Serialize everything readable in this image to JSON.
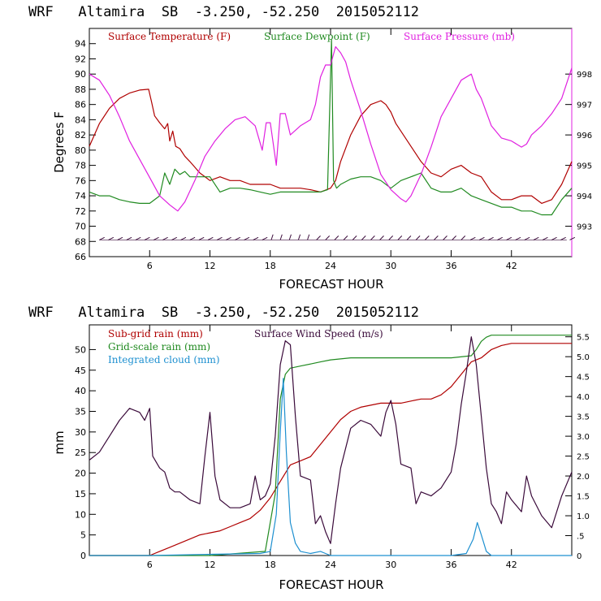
{
  "chart_data": [
    {
      "type": "line",
      "title": "WRF   Altamira  SB  -3.250, -52.250  2015052112",
      "xlabel": "FORECAST HOUR",
      "ylabel": "Degrees F",
      "xlim": [
        0,
        48
      ],
      "ylim": [
        66,
        96
      ],
      "y2lim": [
        992,
        999.5
      ],
      "x_ticks": [
        6,
        12,
        18,
        24,
        30,
        36,
        42
      ],
      "y_ticks": [
        66,
        68,
        70,
        72,
        74,
        76,
        78,
        80,
        82,
        84,
        86,
        88,
        90,
        92,
        94
      ],
      "y2_ticks": [
        993,
        994,
        995,
        996,
        997,
        998
      ],
      "legend_placement": "top",
      "series": [
        {
          "name": "Surface Temperature (F)",
          "color": "#b00000",
          "axis": "left",
          "x": [
            0,
            1,
            2,
            3,
            4,
            5,
            5.9,
            6.2,
            6.5,
            7,
            7.5,
            7.8,
            8,
            8.3,
            8.6,
            9,
            9.5,
            10,
            11,
            12,
            13,
            14,
            15,
            16,
            17,
            18,
            19,
            20,
            21,
            22,
            23,
            24,
            24.5,
            25,
            26,
            27,
            28,
            29,
            29.5,
            30,
            30.5,
            31,
            32,
            33,
            34,
            35,
            36,
            37,
            38,
            39,
            40,
            41,
            42,
            43,
            44,
            45,
            46,
            47,
            48
          ],
          "y": [
            80.5,
            83.5,
            85.5,
            86.8,
            87.5,
            87.9,
            88,
            86.3,
            84.5,
            83.6,
            82.8,
            83.5,
            81.2,
            82.5,
            80.5,
            80.2,
            79.2,
            78.5,
            77,
            76,
            76.5,
            76,
            76,
            75.5,
            75.5,
            75.5,
            75,
            75,
            75,
            74.8,
            74.5,
            75,
            76,
            78.5,
            82,
            84.5,
            86,
            86.5,
            86,
            85,
            83.5,
            82.5,
            80.5,
            78.5,
            77,
            76.5,
            77.5,
            78,
            77,
            76.5,
            74.5,
            73.5,
            73.5,
            74,
            74,
            73,
            73.5,
            75.5,
            78.5
          ]
        },
        {
          "name": "Surface Dewpoint (F)",
          "color": "#208a20",
          "axis": "left",
          "x": [
            0,
            1,
            2,
            3,
            4,
            5,
            6,
            7,
            7.5,
            8,
            8.5,
            9,
            9.5,
            10,
            11,
            12,
            13,
            14,
            15,
            16,
            17,
            18,
            19,
            20,
            21,
            22,
            23,
            23.7,
            24.1,
            24.3,
            24.6,
            25,
            26,
            27,
            28,
            29,
            30,
            31,
            32,
            33,
            34,
            35,
            36,
            37,
            38,
            39,
            40,
            41,
            42,
            43,
            44,
            45,
            46,
            47,
            48
          ],
          "y": [
            74.5,
            74,
            74,
            73.5,
            73.2,
            73,
            73,
            74,
            77,
            75.5,
            77.5,
            76.8,
            77.2,
            76.5,
            76.5,
            76.5,
            74.5,
            75,
            75,
            74.8,
            74.5,
            74.2,
            74.5,
            74.5,
            74.5,
            74.5,
            74.5,
            74.8,
            94.5,
            76,
            75,
            75.5,
            76.2,
            76.5,
            76.5,
            76,
            75,
            76,
            76.5,
            77,
            75,
            74.5,
            74.5,
            75,
            74,
            73.5,
            73,
            72.5,
            72.5,
            72,
            72,
            71.5,
            71.5,
            73.5,
            75
          ]
        },
        {
          "name": "Surface Pressure (mb)",
          "color": "#e020e0",
          "axis": "right",
          "x": [
            0,
            1,
            2,
            3,
            4,
            5,
            6,
            7,
            8,
            8.8,
            9.5,
            10.5,
            11.5,
            12.5,
            13.5,
            14.5,
            15.5,
            16.5,
            17.2,
            17.6,
            18,
            18.6,
            19,
            19.5,
            20,
            21,
            22,
            22.5,
            23,
            23.5,
            24,
            24.5,
            25,
            25.5,
            26,
            27,
            28,
            29,
            30,
            31,
            31.5,
            32,
            33,
            34,
            35,
            36,
            37,
            38,
            38.5,
            39,
            40,
            41,
            42,
            43,
            43.5,
            44,
            45,
            46,
            47,
            48
          ],
          "y": [
            998,
            997.8,
            997.3,
            996.6,
            995.8,
            995.2,
            994.6,
            994.0,
            993.7,
            993.5,
            993.8,
            994.5,
            995.3,
            995.8,
            996.2,
            996.5,
            996.6,
            996.3,
            995.5,
            996.4,
            996.4,
            995.0,
            996.7,
            996.7,
            996.0,
            996.3,
            996.5,
            997.0,
            997.9,
            998.3,
            998.3,
            998.9,
            998.7,
            998.4,
            997.8,
            996.8,
            995.7,
            994.7,
            994.2,
            993.9,
            993.8,
            994.0,
            994.7,
            995.6,
            996.6,
            997.2,
            997.8,
            998.0,
            997.5,
            997.2,
            996.3,
            995.9,
            995.8,
            995.6,
            995.7,
            996.0,
            996.3,
            996.7,
            997.2,
            998.2
          ]
        }
      ],
      "wind_barbs_label": ""
    },
    {
      "type": "line",
      "title": "WRF   Altamira  SB  -3.250, -52.250  2015052112",
      "xlabel": "FORECAST HOUR",
      "ylabel": "mm",
      "xlim": [
        0,
        48
      ],
      "ylim": [
        0,
        56
      ],
      "y2lim": [
        0,
        5.8
      ],
      "x_ticks": [
        6,
        12,
        18,
        24,
        30,
        36,
        42
      ],
      "y_ticks": [
        0,
        5,
        10,
        15,
        20,
        25,
        30,
        35,
        40,
        45,
        50
      ],
      "y2_ticks": [
        0,
        0.5,
        1.0,
        1.5,
        2.0,
        2.5,
        3.0,
        3.5,
        4.0,
        4.5,
        5.0,
        5.5
      ],
      "y2_tick_labels": [
        "0",
        ".5",
        "1.0",
        "1.5",
        "2.0",
        "2.5",
        "3.0",
        "3.5",
        "4.0",
        "4.5",
        "5.0",
        "5.5"
      ],
      "legend_placement": "top-left",
      "series": [
        {
          "name": "Sub-grid rain (mm)",
          "color": "#b00000",
          "axis": "left",
          "x": [
            0,
            6,
            7,
            8,
            9,
            10,
            11,
            12,
            13,
            14,
            15,
            16,
            17,
            18,
            19,
            20,
            21,
            22,
            23,
            24,
            25,
            26,
            27,
            28,
            29,
            30,
            31,
            32,
            33,
            34,
            35,
            36,
            37,
            38,
            39,
            40,
            41,
            42,
            43,
            44,
            45,
            46,
            47,
            48
          ],
          "y": [
            0,
            0,
            1,
            2,
            3,
            4,
            5,
            5.5,
            6,
            7,
            8,
            9,
            11,
            14,
            18,
            22,
            23,
            24,
            27,
            30,
            33,
            35,
            36,
            36.5,
            37,
            37,
            37,
            37.5,
            38,
            38,
            39,
            41,
            44,
            47,
            48,
            50,
            51,
            51.5,
            51.5,
            51.5,
            51.5,
            51.5,
            51.5,
            51.5
          ]
        },
        {
          "name": "Grid-scale rain (mm)",
          "color": "#208a20",
          "axis": "left",
          "x": [
            0,
            6,
            12,
            17.5,
            18.5,
            19,
            19.5,
            20,
            21,
            22,
            23,
            24,
            26,
            28,
            30,
            32,
            34,
            36,
            38,
            38.5,
            39,
            39.5,
            40,
            42,
            44,
            46,
            48
          ],
          "y": [
            0,
            0,
            0,
            1,
            15,
            38,
            44,
            45.5,
            46,
            46.5,
            47,
            47.5,
            48,
            48,
            48,
            48,
            48,
            48,
            48.5,
            50,
            52,
            53,
            53.5,
            53.5,
            53.5,
            53.5,
            53.5
          ]
        },
        {
          "name": "Integrated cloud (mm)",
          "color": "#1e90d0",
          "axis": "left",
          "x": [
            0,
            6,
            12,
            17,
            18,
            18.6,
            19,
            19.3,
            19.6,
            20,
            20.5,
            21,
            22,
            23,
            23.5,
            24,
            26,
            30,
            36,
            37.5,
            38.2,
            38.6,
            39,
            39.5,
            40,
            42,
            44,
            46,
            48
          ],
          "y": [
            0,
            0,
            0.3,
            0.5,
            1,
            10,
            30,
            43,
            25,
            8,
            3,
            1,
            0.5,
            1,
            0.5,
            0,
            0,
            0,
            0,
            0.5,
            4,
            8,
            5,
            1,
            0,
            0,
            0,
            0,
            0
          ]
        },
        {
          "name": "Surface Wind Speed (m/s)",
          "color": "#3a0a3a",
          "axis": "right",
          "x": [
            0,
            1,
            2,
            3,
            4,
            5,
            5.5,
            6,
            6.3,
            7,
            7.5,
            8,
            8.5,
            9,
            10,
            11,
            11.5,
            12,
            12.5,
            13,
            14,
            15,
            16,
            16.5,
            17,
            17.5,
            18,
            18.5,
            19,
            19.5,
            20,
            20.5,
            21,
            22,
            22.5,
            23,
            23.5,
            24,
            24.5,
            25,
            26,
            27,
            28,
            29,
            29.5,
            30,
            30.5,
            31,
            32,
            32.5,
            33,
            34,
            35,
            36,
            36.5,
            37,
            37.5,
            38,
            38.5,
            39,
            39.5,
            40,
            40.5,
            41,
            41.5,
            42,
            43,
            43.5,
            44,
            45,
            46,
            47,
            48
          ],
          "y": [
            2.4,
            2.6,
            3.0,
            3.4,
            3.7,
            3.6,
            3.4,
            3.7,
            2.5,
            2.2,
            2.1,
            1.7,
            1.6,
            1.6,
            1.4,
            1.3,
            2.5,
            3.6,
            2.0,
            1.4,
            1.2,
            1.2,
            1.3,
            2.0,
            1.4,
            1.5,
            1.8,
            3.0,
            4.8,
            5.4,
            5.3,
            3.5,
            2.0,
            1.9,
            0.8,
            1.0,
            0.6,
            0.3,
            1.3,
            2.2,
            3.2,
            3.4,
            3.3,
            3.0,
            3.6,
            3.9,
            3.3,
            2.3,
            2.2,
            1.3,
            1.6,
            1.5,
            1.7,
            2.1,
            2.8,
            3.8,
            4.6,
            5.5,
            4.8,
            3.5,
            2.2,
            1.3,
            1.1,
            0.8,
            1.6,
            1.4,
            1.1,
            2.0,
            1.5,
            1.0,
            0.7,
            1.5,
            2.1
          ]
        }
      ]
    }
  ]
}
